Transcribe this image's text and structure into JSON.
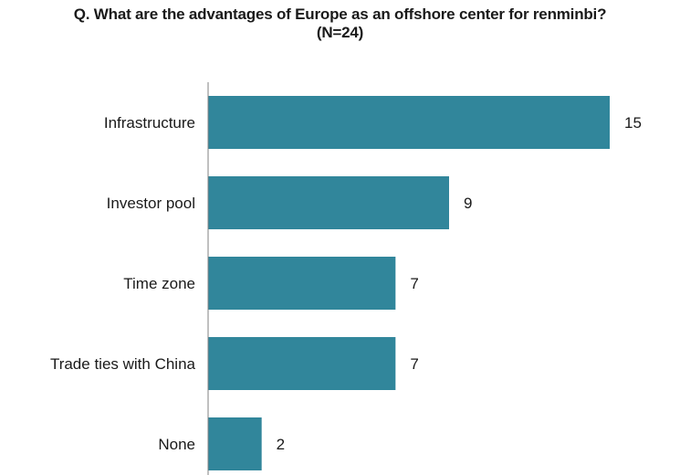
{
  "chart_data": {
    "type": "bar",
    "orientation": "horizontal",
    "title": "Q. What are the advantages of Europe as an offshore center for renminbi?",
    "subtitle": "(N=24)",
    "categories": [
      "Infrastructure",
      "Investor pool",
      "Time zone",
      "Trade ties with China",
      "None"
    ],
    "values": [
      15,
      9,
      7,
      7,
      2
    ],
    "xlim": [
      0,
      15
    ],
    "grid": false,
    "legend": "none",
    "bar_color": "#31869b",
    "axis_color": "#808080"
  }
}
